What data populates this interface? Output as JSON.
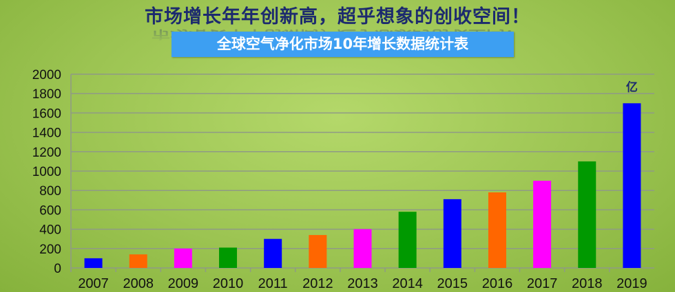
{
  "headline": "市场增长年年创新高，超乎想象的创收空间！",
  "chart_data": {
    "type": "bar",
    "title": "全球空气净化市场10年增长数据统计表",
    "unit_label": "亿",
    "categories": [
      "2007",
      "2008",
      "2009",
      "2010",
      "2011",
      "2012",
      "2013",
      "2014",
      "2015",
      "2016",
      "2017",
      "2018",
      "2019"
    ],
    "values": [
      100,
      140,
      200,
      210,
      300,
      340,
      400,
      580,
      710,
      780,
      900,
      1100,
      1700
    ],
    "colors": [
      "#0000ff",
      "#ff6600",
      "#ff00ff",
      "#009900",
      "#0000ff",
      "#ff6600",
      "#ff00ff",
      "#009900",
      "#0000ff",
      "#ff6600",
      "#ff00ff",
      "#009900",
      "#0000ff"
    ],
    "ylim": [
      0,
      2000
    ],
    "yticks": [
      0,
      200,
      400,
      600,
      800,
      1000,
      1200,
      1400,
      1600,
      1800,
      2000
    ],
    "grid": true,
    "legend": "none"
  }
}
